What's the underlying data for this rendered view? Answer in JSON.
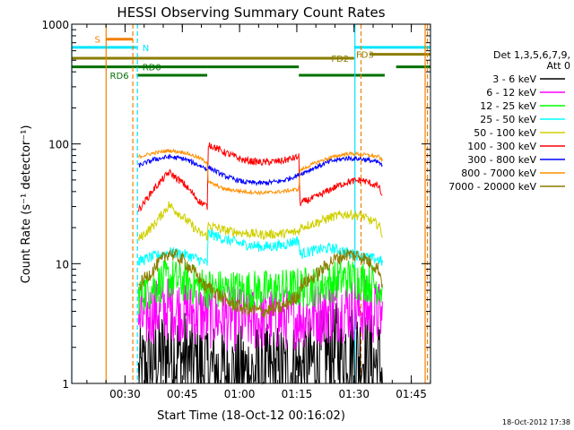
{
  "chart_data": {
    "type": "line",
    "title": "HESSI Observing Summary Count Rates",
    "xlabel": "Start Time (18-Oct-12 00:16:02)",
    "ylabel": "Count Rate (s⁻¹ detector⁻¹)",
    "yscale": "log",
    "ylim": [
      1,
      1000
    ],
    "xlim_minutes": [
      0.0,
      94.0
    ],
    "x_ticks": [
      "00:30",
      "00:45",
      "01:00",
      "01:15",
      "01:30",
      "01:45"
    ],
    "x_tick_minutes": [
      13.97,
      28.97,
      43.97,
      58.97,
      73.97,
      88.97
    ],
    "y_ticks": [
      "1",
      "10",
      "100",
      "1000"
    ],
    "y_tick_values": [
      1,
      10,
      100,
      1000
    ],
    "grid": false,
    "legend_position": "right",
    "legend_header": [
      "Det 1,3,5,6,7,9,",
      "Att 0"
    ],
    "timestamp": "18-Oct-2012 17:38",
    "attenuator_note": "Att 0",
    "data_gaps_minutes": [
      [
        0,
        17
      ],
      [
        81.5,
        94
      ]
    ],
    "day_boundary_minutes": 35.6,
    "night_boundary_minutes": 59.6,
    "flags": [
      {
        "name": "S",
        "color": "#f08000",
        "y": 750,
        "x_start": 9.0,
        "x_end": 16.0,
        "label_at": 6.0
      },
      {
        "name": "N",
        "color": "#00e5ff",
        "y": 640,
        "x_start": 0.0,
        "x_end": 17.0,
        "label_at": 18.5
      },
      {
        "name": "N",
        "color": "#00e5ff",
        "y": 640,
        "x_start": 74.0,
        "x_end": 94.0,
        "label_at": null
      },
      {
        "name": "FD2",
        "color": "#8b7d00",
        "y": 520,
        "x_start": 0.0,
        "x_end": 74.0,
        "label_at": 68.0
      },
      {
        "name": "FD3",
        "color": "#8b7d00",
        "y": 560,
        "x_start": 78.0,
        "x_end": 94.0,
        "label_at": 74.5
      },
      {
        "name": "RD0",
        "color": "#007000",
        "y": 440,
        "x_start": 0.0,
        "x_end": 35.5,
        "label_at": 18.5
      },
      {
        "name": "RD0",
        "color": "#007000",
        "y": 440,
        "x_start": 35.5,
        "x_end": 59.5,
        "label_at": null
      },
      {
        "name": "RD0",
        "color": "#007000",
        "y": 440,
        "x_start": 85.0,
        "x_end": 94.0,
        "label_at": null
      },
      {
        "name": "RD6",
        "color": "#007000",
        "y": 375,
        "x_start": 17.0,
        "x_end": 35.5,
        "label_at": 10.0
      },
      {
        "name": "RD6",
        "color": "#007000",
        "y": 375,
        "x_start": 59.5,
        "x_end": 82.0,
        "label_at": null
      }
    ],
    "vertical_markers": [
      {
        "color": "#00e5ff",
        "style": "solid",
        "x": 0.0
      },
      {
        "color": "#f08000",
        "style": "solid",
        "x": 9.0
      },
      {
        "color": "#f08000",
        "style": "dashed",
        "x": 16.0
      },
      {
        "color": "#00e5ff",
        "style": "dashed",
        "x": 17.2
      },
      {
        "color": "#00e5ff",
        "style": "solid",
        "x": 74.2
      },
      {
        "color": "#f08000",
        "style": "dashed",
        "x": 75.8
      },
      {
        "color": "#f08000",
        "style": "solid",
        "x": 92.6
      },
      {
        "color": "#f08000",
        "style": "dashed",
        "x": 93.2
      }
    ],
    "x_sample_minutes": [
      17.5,
      21.5,
      25.5,
      29.5,
      33.5,
      35.5,
      35.8,
      40.0,
      45.0,
      50.0,
      55.0,
      59.5,
      59.8,
      64.0,
      68.0,
      72.0,
      76.0,
      80.5,
      81.5
    ],
    "series": [
      {
        "name": "3 - 6 keV",
        "color": "#000000",
        "values": [
          1.1,
          1.5,
          1.8,
          1.6,
          1.4,
          1.3,
          1.3,
          1.2,
          1.2,
          1.2,
          1.2,
          1.3,
          1.3,
          1.5,
          1.8,
          1.9,
          1.7,
          1.4,
          1.2
        ]
      },
      {
        "name": "6 - 12 keV",
        "color": "#ff00ff",
        "values": [
          3.2,
          4.0,
          4.2,
          4.1,
          3.8,
          3.6,
          3.6,
          3.5,
          3.4,
          3.4,
          3.5,
          3.6,
          3.6,
          3.8,
          4.0,
          4.2,
          4.1,
          3.8,
          3.5
        ]
      },
      {
        "name": "12 - 25 keV",
        "color": "#00ff00",
        "values": [
          5.5,
          6.5,
          7.5,
          7.0,
          6.5,
          6.2,
          6.2,
          6.0,
          6.0,
          6.0,
          6.1,
          6.3,
          6.3,
          6.5,
          7.0,
          7.6,
          7.3,
          6.6,
          5.8
        ]
      },
      {
        "name": "25 - 50 keV",
        "color": "#00ffff",
        "values": [
          10.5,
          11.5,
          12.5,
          12.0,
          10.8,
          10.0,
          18.0,
          16.0,
          14.5,
          13.8,
          14.2,
          15.8,
          12.0,
          13.0,
          13.5,
          12.5,
          11.5,
          10.8,
          10.2
        ]
      },
      {
        "name": "50 - 100 keV",
        "color": "#d0d000",
        "values": [
          16.0,
          21.0,
          31.0,
          24.0,
          18.0,
          17.0,
          21.0,
          19.0,
          18.0,
          17.5,
          17.8,
          18.5,
          20.0,
          22.0,
          24.5,
          26.0,
          25.0,
          21.0,
          17.0
        ]
      },
      {
        "name": "100 - 300 keV",
        "color": "#ff0000",
        "values": [
          28.0,
          42.0,
          58.0,
          46.0,
          33.0,
          30.0,
          100.0,
          85.0,
          73.0,
          70.0,
          72.0,
          78.0,
          32.0,
          36.0,
          42.0,
          48.0,
          50.0,
          44.0,
          35.0
        ]
      },
      {
        "name": "300 - 800 keV",
        "color": "#0000ff",
        "values": [
          66.0,
          74.0,
          78.0,
          75.0,
          66.0,
          62.0,
          64.0,
          54.0,
          48.0,
          47.0,
          49.0,
          55.0,
          56.0,
          64.0,
          72.0,
          76.0,
          75.0,
          70.0,
          64.0
        ]
      },
      {
        "name": "800 - 7000 keV",
        "color": "#ff9000",
        "values": [
          78.0,
          84.0,
          88.0,
          85.0,
          76.0,
          70.0,
          48.0,
          42.0,
          40.0,
          39.0,
          40.0,
          42.0,
          60.0,
          70.0,
          77.0,
          83.0,
          82.0,
          78.0,
          72.0
        ]
      },
      {
        "name": "7000 - 20000 keV",
        "color": "#8b7d00",
        "values": [
          6.5,
          9.0,
          12.5,
          10.5,
          7.5,
          6.0,
          6.5,
          5.0,
          4.2,
          4.0,
          4.3,
          5.5,
          6.5,
          8.0,
          10.5,
          12.0,
          11.5,
          9.0,
          6.5
        ]
      }
    ]
  }
}
